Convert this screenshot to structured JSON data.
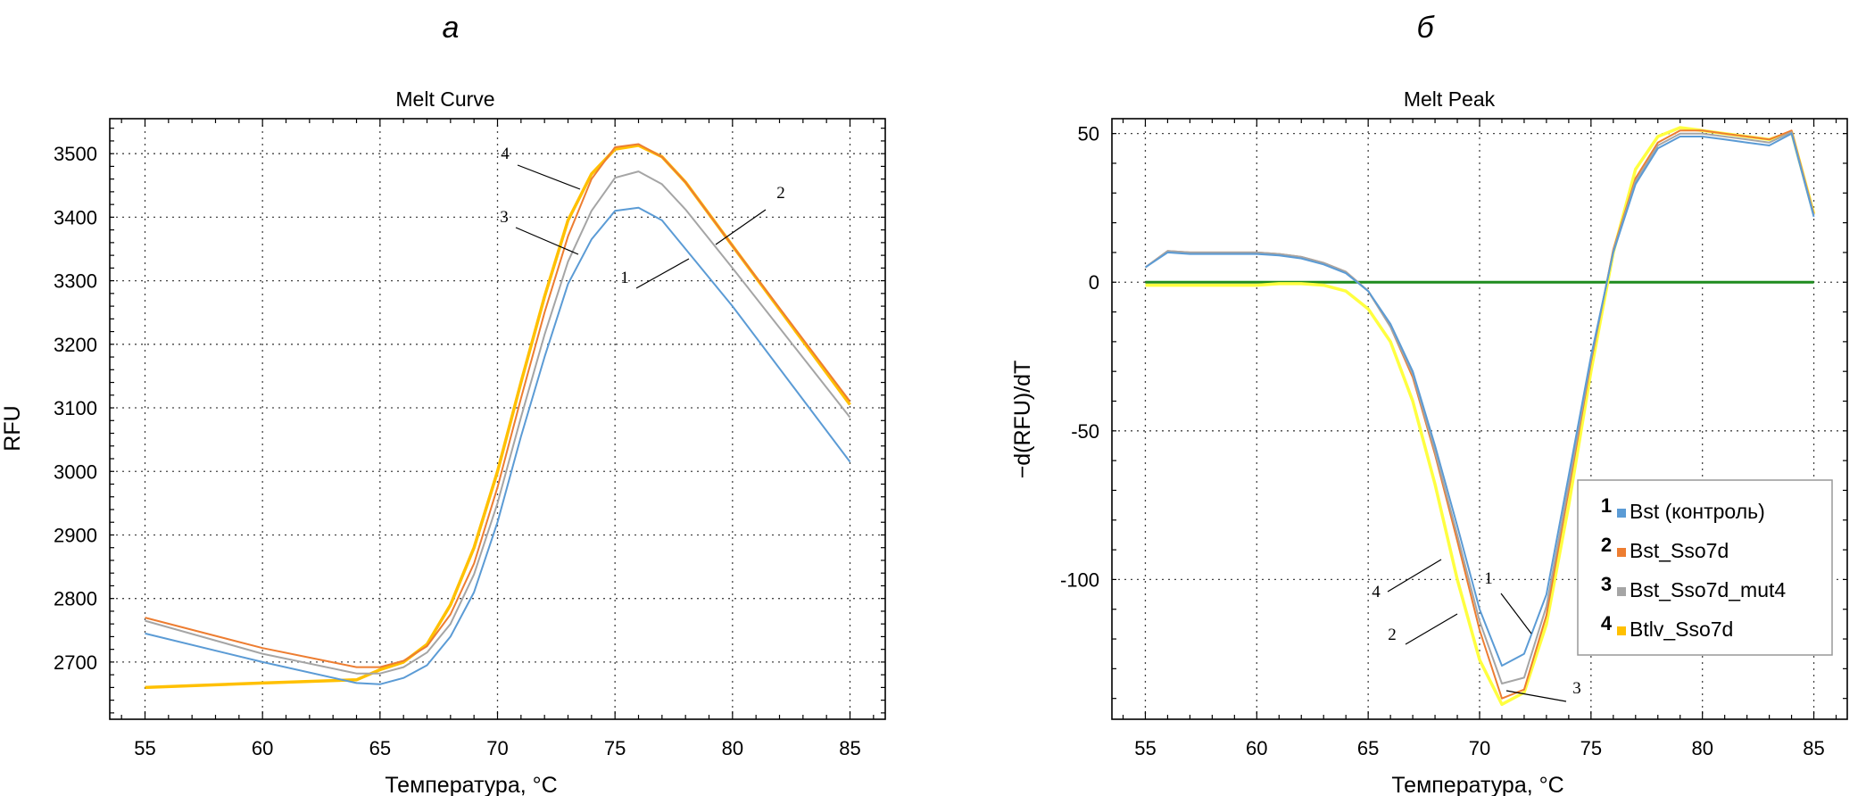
{
  "panels": {
    "a": "а",
    "b": "б"
  },
  "chart_data": [
    {
      "type": "line",
      "title": "Melt Curve",
      "xlabel": "Температура, °C",
      "ylabel": "RFU",
      "xlim": [
        53.5,
        86.5
      ],
      "ylim": [
        2610,
        3555
      ],
      "xticks": [
        55,
        60,
        65,
        70,
        75,
        80,
        85
      ],
      "yticks": [
        2700,
        2800,
        2900,
        3000,
        3100,
        3200,
        3300,
        3400,
        3500
      ],
      "grid": true,
      "series": [
        {
          "name": "Bst (контроль)",
          "color": "#5b9bd5",
          "x": [
            55,
            60,
            64,
            65,
            66,
            67,
            68,
            69,
            70,
            71,
            72,
            73,
            74,
            75,
            76,
            77,
            78,
            80,
            85
          ],
          "y": [
            2745,
            2700,
            2667,
            2665,
            2675,
            2695,
            2740,
            2810,
            2920,
            3055,
            3180,
            3295,
            3365,
            3410,
            3415,
            3395,
            3350,
            3260,
            3015
          ]
        },
        {
          "name": "Bst_Sso7d",
          "color": "#ed7d31",
          "x": [
            55,
            60,
            64,
            65,
            66,
            67,
            68,
            69,
            70,
            71,
            72,
            73,
            74,
            75,
            76,
            77,
            78,
            80,
            85
          ],
          "y": [
            2770,
            2722,
            2692,
            2692,
            2702,
            2725,
            2775,
            2855,
            2975,
            3115,
            3250,
            3370,
            3460,
            3510,
            3515,
            3495,
            3455,
            3355,
            3110
          ]
        },
        {
          "name": "Bst_Sso7d_mut4",
          "color": "#a5a5a5",
          "x": [
            55,
            60,
            64,
            65,
            66,
            67,
            68,
            69,
            70,
            71,
            72,
            73,
            74,
            75,
            76,
            77,
            78,
            80,
            85
          ],
          "y": [
            2765,
            2713,
            2682,
            2682,
            2692,
            2715,
            2760,
            2838,
            2950,
            3085,
            3215,
            3330,
            3410,
            3462,
            3472,
            3452,
            3412,
            3320,
            3085
          ]
        },
        {
          "name": "Btlv_Sso7d",
          "color": "#ffc000",
          "x": [
            55,
            60,
            64,
            65,
            66,
            67,
            68,
            69,
            70,
            71,
            72,
            73,
            74,
            75,
            76,
            77,
            78,
            80,
            85
          ],
          "y": [
            2660,
            2667,
            2672,
            2688,
            2700,
            2728,
            2790,
            2880,
            3000,
            3140,
            3275,
            3395,
            3468,
            3507,
            3513,
            3495,
            3455,
            3355,
            3105
          ]
        }
      ],
      "annotations": [
        "1",
        "2",
        "3",
        "4"
      ]
    },
    {
      "type": "line",
      "title": "Melt Peak",
      "xlabel": "Температура, °C",
      "ylabel": "−d(RFU)/dT",
      "xlim": [
        53.5,
        86.5
      ],
      "ylim": [
        -147,
        55
      ],
      "xticks": [
        55,
        60,
        65,
        70,
        75,
        80,
        85
      ],
      "yticks": [
        -100,
        -50,
        0,
        50
      ],
      "grid": true,
      "baseline": {
        "y": 0,
        "color": "#1e8c1e"
      },
      "series": [
        {
          "name": "Bst (контроль)",
          "color": "#5b9bd5",
          "x": [
            55,
            56,
            57,
            58,
            59,
            60,
            61,
            62,
            63,
            64,
            65,
            66,
            67,
            68,
            69,
            70,
            71,
            72,
            73,
            74,
            75,
            76,
            77,
            78,
            79,
            80,
            81,
            82,
            83,
            84,
            85
          ],
          "y": [
            5,
            10,
            9.5,
            9.5,
            9.5,
            9.5,
            9,
            8,
            6,
            3,
            -3,
            -14,
            -30,
            -55,
            -82,
            -110,
            -129,
            -125,
            -105,
            -65,
            -25,
            10,
            33,
            45,
            49,
            49,
            48,
            47,
            46,
            50,
            22
          ]
        },
        {
          "name": "Bst_Sso7d",
          "color": "#ed7d31",
          "x": [
            55,
            56,
            57,
            58,
            59,
            60,
            61,
            62,
            63,
            64,
            65,
            66,
            67,
            68,
            69,
            70,
            71,
            72,
            73,
            74,
            75,
            76,
            77,
            78,
            79,
            80,
            81,
            82,
            83,
            84,
            85
          ],
          "y": [
            5,
            10.5,
            10,
            10,
            10,
            10,
            9.5,
            8.5,
            6.5,
            3.5,
            -3,
            -15,
            -32,
            -58,
            -87,
            -117,
            -140,
            -137,
            -112,
            -70,
            -27,
            11,
            35,
            47,
            51,
            51,
            50,
            49,
            48,
            51,
            23
          ]
        },
        {
          "name": "Bst_Sso7d_mut4",
          "color": "#a5a5a5",
          "x": [
            55,
            56,
            57,
            58,
            59,
            60,
            61,
            62,
            63,
            64,
            65,
            66,
            67,
            68,
            69,
            70,
            71,
            72,
            73,
            74,
            75,
            76,
            77,
            78,
            79,
            80,
            81,
            82,
            83,
            84,
            85
          ],
          "y": [
            5,
            10.5,
            10,
            10,
            10,
            10,
            9.5,
            8.5,
            6.5,
            3.5,
            -3,
            -15,
            -31,
            -57,
            -85,
            -114,
            -135,
            -133,
            -109,
            -68,
            -26,
            10.5,
            34,
            46,
            50,
            50,
            49,
            48,
            47,
            50.5,
            22.5
          ]
        },
        {
          "name": "Btlv_Sso7d",
          "color": "#ffff40",
          "x": [
            55,
            56,
            57,
            58,
            59,
            60,
            61,
            62,
            63,
            64,
            65,
            66,
            67,
            68,
            69,
            70,
            71,
            72,
            73,
            74,
            75,
            76,
            77,
            78,
            79,
            80,
            81,
            82,
            83,
            84,
            85
          ],
          "y": [
            -1,
            -1,
            -1,
            -1,
            -1,
            -1,
            -0.5,
            -0.5,
            -1,
            -3,
            -9,
            -20,
            -40,
            -68,
            -100,
            -127,
            -142,
            -138,
            -115,
            -75,
            -30,
            10,
            38,
            49,
            52,
            51,
            50,
            49,
            48,
            50.5,
            23
          ]
        }
      ],
      "annotations": [
        "4",
        "1",
        "2",
        "3"
      ],
      "legend": {
        "placement": "right-center",
        "entries": [
          {
            "num": "1",
            "label": "Bst (контроль)",
            "color": "#5b9bd5"
          },
          {
            "num": "2",
            "label": "Bst_Sso7d",
            "color": "#ed7d31"
          },
          {
            "num": "3",
            "label": "Bst_Sso7d_mut4",
            "color": "#a5a5a5"
          },
          {
            "num": "4",
            "label": "Btlv_Sso7d",
            "color": "#ffc000"
          }
        ]
      }
    }
  ]
}
